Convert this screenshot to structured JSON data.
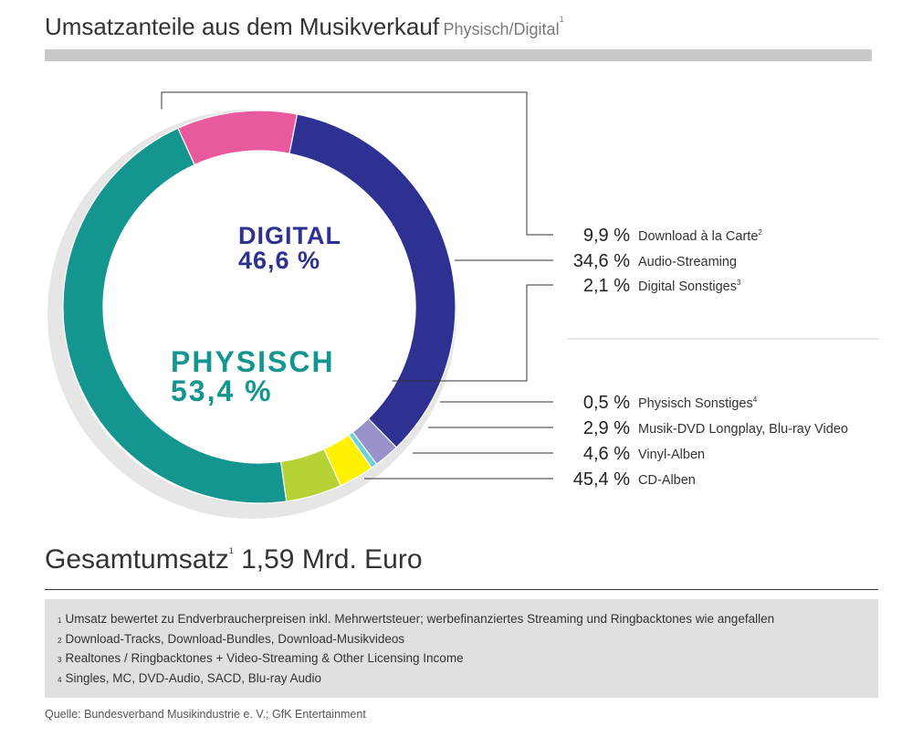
{
  "title": {
    "main": "Umsatzanteile aus dem Musikverkauf",
    "sub": "Physisch/Digital",
    "sub_sup": "1"
  },
  "chart_data": {
    "type": "pie",
    "style": "donut",
    "groups": [
      {
        "name": "DIGITAL",
        "value_label": "46,6 %",
        "value": 46.6,
        "color": "#2e3192"
      },
      {
        "name": "PHYSISCH",
        "value_label": "53,4 %",
        "value": 53.4,
        "color": "#15958f"
      }
    ],
    "slices": [
      {
        "key": "download",
        "label": "Download à la Carte",
        "sup": "2",
        "value": 9.9,
        "value_label": "9,9 %",
        "color": "#e8599e",
        "group": "DIGITAL"
      },
      {
        "key": "audio-streaming",
        "label": "Audio-Streaming",
        "sup": "",
        "value": 34.6,
        "value_label": "34,6 %",
        "color": "#2e3192",
        "group": "DIGITAL"
      },
      {
        "key": "digital-sonstiges",
        "label": "Digital Sonstiges",
        "sup": "3",
        "value": 2.1,
        "value_label": "2,1 %",
        "color": "#9792cc",
        "group": "DIGITAL"
      },
      {
        "key": "physisch-sonstiges",
        "label": "Physisch Sonstiges",
        "sup": "4",
        "value": 0.5,
        "value_label": "0,5 %",
        "color": "#6fd0dc",
        "group": "PHYSISCH"
      },
      {
        "key": "musik-dvd",
        "label": "Musik-DVD Longplay, Blu-ray Video",
        "sup": "",
        "value": 2.9,
        "value_label": "2,9 %",
        "color": "#fff200",
        "group": "PHYSISCH"
      },
      {
        "key": "vinyl",
        "label": "Vinyl-Alben",
        "sup": "",
        "value": 4.6,
        "value_label": "4,6 %",
        "color": "#b5d334",
        "group": "PHYSISCH"
      },
      {
        "key": "cd",
        "label": "CD-Alben",
        "sup": "",
        "value": 45.4,
        "value_label": "45,4 %",
        "color": "#15958f",
        "group": "PHYSISCH"
      }
    ],
    "center_text_color_digital": "#2e3192",
    "center_text_color_physisch": "#15958f",
    "backing_ring_color": "#e6e6e6",
    "leader_color": "#333333",
    "separator_color": "#cfcfcf"
  },
  "total": {
    "label": "Gesamtumsatz",
    "sup": "1",
    "value": "1,59 Mrd. Euro"
  },
  "footnotes": [
    {
      "num": "1",
      "text": "Umsatz bewertet zu Endverbraucherpreisen inkl. Mehrwertsteuer; werbefinanziertes Streaming und Ringbacktones wie angefallen"
    },
    {
      "num": "2",
      "text": "Download-Tracks, Download-Bundles, Download-Musikvideos"
    },
    {
      "num": "3",
      "text": "Realtones / Ringbacktones + Video-Streaming & Other Licensing Income"
    },
    {
      "num": "4",
      "text": "Singles, MC, DVD-Audio, SACD, Blu-ray Audio"
    }
  ],
  "source": "Quelle: Bundesverband Musikindustrie e. V.; GfK Entertainment"
}
